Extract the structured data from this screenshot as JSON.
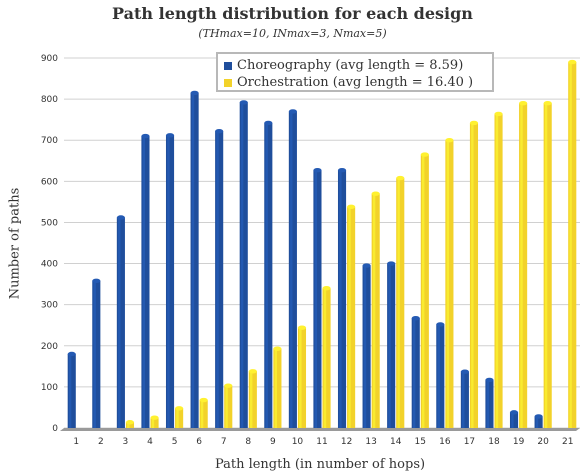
{
  "chart_data": {
    "type": "bar",
    "title": "Path length distribution for each design",
    "subtitle": "(THmax=10, INmax=3, Nmax=5)",
    "xlabel": "Path length (in number of hops)",
    "ylabel": "Number of paths",
    "categories": [
      "1",
      "2",
      "3",
      "4",
      "5",
      "6",
      "7",
      "8",
      "9",
      "10",
      "11",
      "12",
      "13",
      "14",
      "15",
      "16",
      "17",
      "18",
      "19",
      "20",
      "21"
    ],
    "ylim": [
      0,
      900
    ],
    "yticks": [
      0,
      100,
      200,
      300,
      400,
      500,
      600,
      700,
      800,
      900
    ],
    "grid": true,
    "legend_position": "top-center",
    "series": [
      {
        "name": "Choreography (avg length = 8.59)",
        "color": "#1f4e9c",
        "values": [
          180,
          358,
          512,
          710,
          712,
          815,
          722,
          792,
          742,
          770,
          627,
          627,
          395,
          400,
          267,
          252,
          137,
          117,
          38,
          28,
          0
        ]
      },
      {
        "name": "Orchestration (avg length = 16.40 )",
        "color": "#f2d22a",
        "values": [
          0,
          0,
          14,
          25,
          48,
          68,
          103,
          138,
          193,
          244,
          340,
          538,
          570,
          608,
          665,
          700,
          742,
          764,
          790,
          790,
          890
        ]
      }
    ]
  }
}
